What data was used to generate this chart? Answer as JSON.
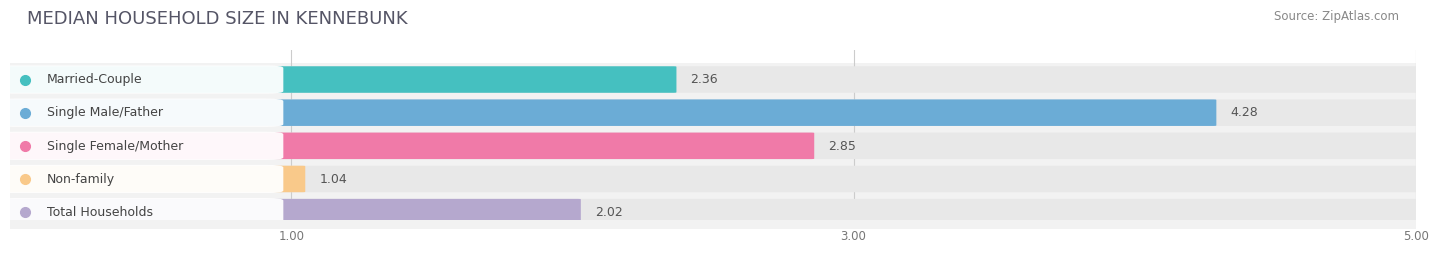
{
  "title": "MEDIAN HOUSEHOLD SIZE IN KENNEBUNK",
  "source": "Source: ZipAtlas.com",
  "categories": [
    "Married-Couple",
    "Single Male/Father",
    "Single Female/Mother",
    "Non-family",
    "Total Households"
  ],
  "values": [
    2.36,
    4.28,
    2.85,
    1.04,
    2.02
  ],
  "bar_colors": [
    "#45C0C0",
    "#6BACD6",
    "#F07AA8",
    "#F9C98A",
    "#B5A8CE"
  ],
  "bar_bg_color": "#E8E8E8",
  "label_bg_color": "#FFFFFF",
  "xlim_data": [
    0,
    5.0
  ],
  "xticks": [
    1.0,
    3.0,
    5.0
  ],
  "title_fontsize": 13,
  "source_fontsize": 8.5,
  "label_fontsize": 9,
  "value_fontsize": 9,
  "bg_color": "#FFFFFF",
  "plot_bg_color": "#F2F2F2",
  "bar_height": 0.62,
  "bar_gap": 0.18
}
